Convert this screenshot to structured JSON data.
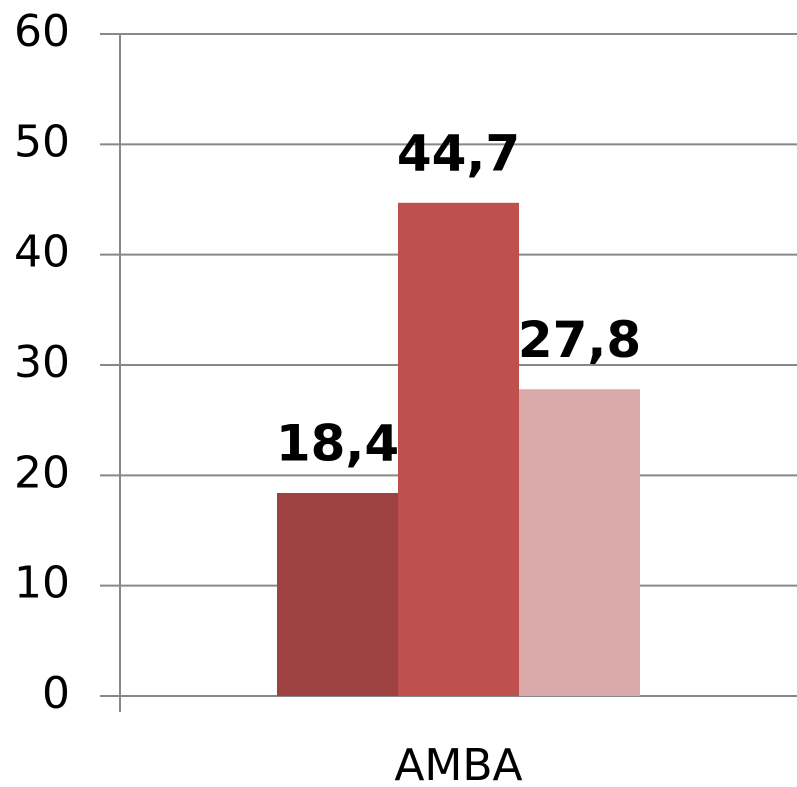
{
  "chart_data": {
    "type": "bar",
    "categories": [
      "AMBA"
    ],
    "series": [
      {
        "color": "#9e4241",
        "values": [
          18.4
        ],
        "value_labels": [
          "18,4"
        ]
      },
      {
        "color": "#c0504d",
        "values": [
          44.7
        ],
        "value_labels": [
          "44,7"
        ]
      },
      {
        "color": "#d9a9a9",
        "values": [
          27.8
        ],
        "value_labels": [
          "27,8"
        ]
      }
    ],
    "ylim": [
      0,
      60
    ],
    "yticks": [
      0,
      10,
      20,
      30,
      40,
      50,
      60
    ],
    "grid": true
  }
}
